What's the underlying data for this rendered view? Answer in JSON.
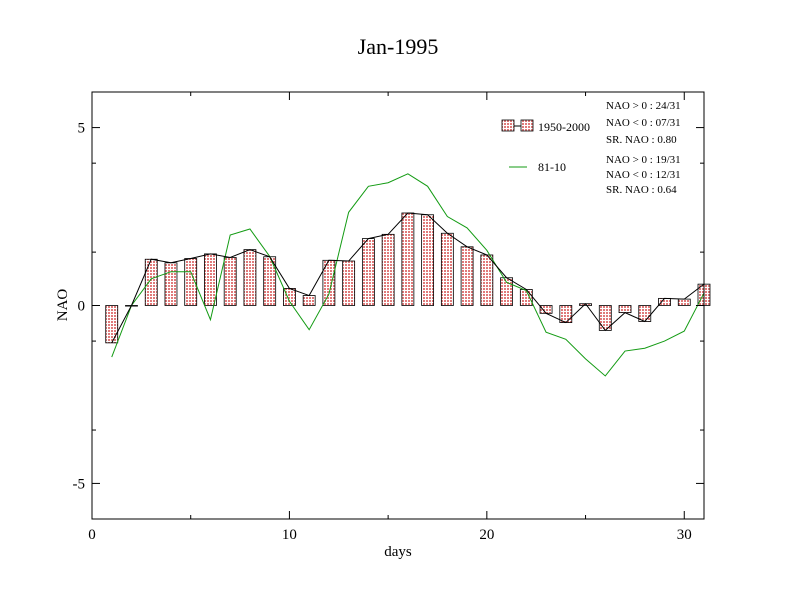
{
  "chart_data": {
    "type": "bar",
    "title": "Jan-1995",
    "xlabel": "days",
    "ylabel": "NAO",
    "xlim": [
      0,
      31
    ],
    "ylim": [
      -6,
      6
    ],
    "x_ticks": [
      0,
      10,
      20,
      30
    ],
    "y_ticks": [
      -5,
      0,
      5
    ],
    "x_minor_step": 5,
    "y_minor_step": 2.5,
    "grid": false,
    "legend_position": "top-right",
    "bar_color": "#e88080",
    "line_color_1": "#000000",
    "line_color_2": "#139b13",
    "x": [
      1,
      2,
      3,
      4,
      5,
      6,
      7,
      8,
      9,
      10,
      11,
      12,
      13,
      14,
      15,
      16,
      17,
      18,
      19,
      20,
      21,
      22,
      23,
      24,
      25,
      26,
      27,
      28,
      29,
      30,
      31
    ],
    "series": [
      {
        "name": "1950-2000",
        "kind": "bar+line",
        "values": [
          -1.05,
          0.0,
          1.3,
          1.2,
          1.32,
          1.45,
          1.35,
          1.57,
          1.37,
          0.48,
          0.28,
          1.27,
          1.25,
          1.88,
          2.0,
          2.6,
          2.55,
          2.03,
          1.65,
          1.42,
          0.78,
          0.45,
          -0.22,
          -0.48,
          0.05,
          -0.7,
          -0.2,
          -0.45,
          0.2,
          0.18,
          0.6
        ]
      },
      {
        "name": "81-10",
        "kind": "line",
        "values": [
          -1.45,
          0.0,
          0.75,
          0.95,
          0.95,
          -0.4,
          1.98,
          2.15,
          1.38,
          0.12,
          -0.68,
          0.32,
          2.62,
          3.35,
          3.45,
          3.7,
          3.35,
          2.5,
          2.18,
          1.55,
          0.65,
          0.42,
          -0.75,
          -0.95,
          -1.5,
          -1.98,
          -1.28,
          -1.2,
          -1.0,
          -0.72,
          0.35
        ]
      }
    ],
    "stats": [
      {
        "lines": [
          "NAO > 0 : 24/31",
          "NAO < 0 : 07/31",
          "SR. NAO :  0.80"
        ]
      },
      {
        "lines": [
          "NAO > 0 : 19/31",
          "NAO < 0 : 12/31",
          "SR. NAO :  0.64"
        ]
      }
    ]
  }
}
